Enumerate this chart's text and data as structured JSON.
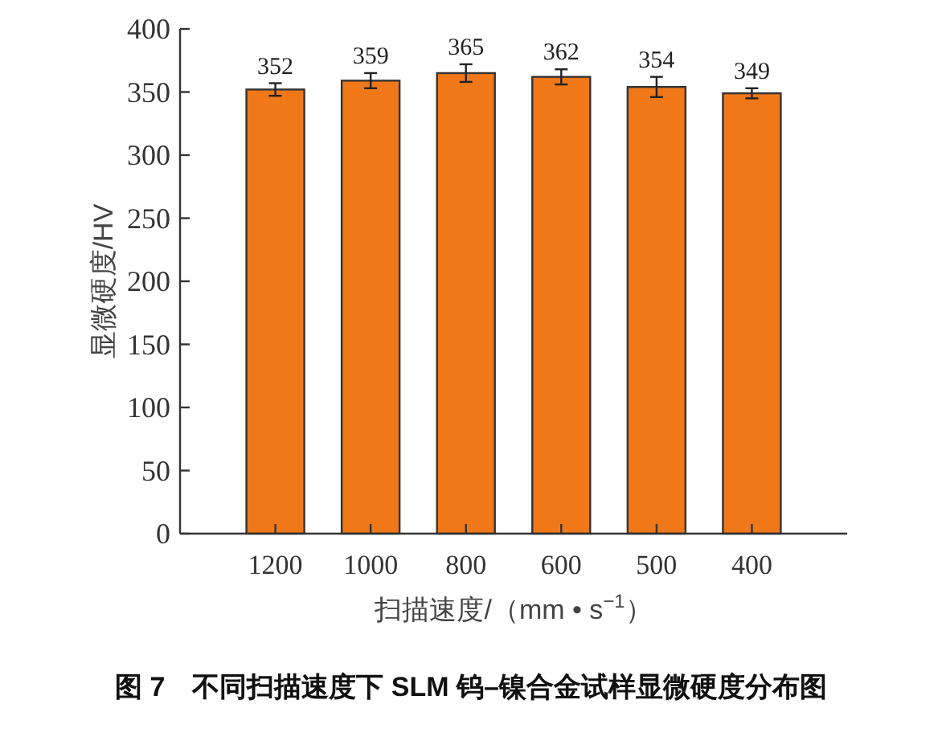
{
  "chart_data": {
    "type": "bar",
    "title": "图 7　不同扫描速度下 SLM 钨–镍合金试样显微硬度分布图",
    "xlabel": "扫描速度/（mm • s$^{−1}$）",
    "ylabel": "显微硬度/HV",
    "categories": [
      "1200",
      "1000",
      "800",
      "600",
      "500",
      "400"
    ],
    "values": [
      352,
      359,
      365,
      362,
      354,
      349
    ],
    "errors": [
      5,
      6,
      7,
      6,
      8,
      4
    ],
    "color": "#f07818",
    "ylim": [
      0,
      400
    ],
    "yticks": [
      0,
      50,
      100,
      150,
      200,
      250,
      300,
      350,
      400
    ],
    "data_labels": true,
    "grid": false
  }
}
